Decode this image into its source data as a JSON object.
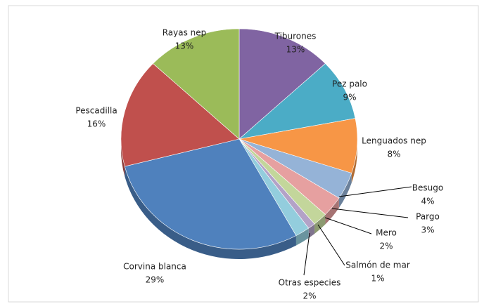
{
  "chart_data": {
    "type": "pie",
    "categories": [
      "Tiburones",
      "Pez palo",
      "Lenguados nep",
      "Besugo",
      "Pargo",
      "Mero",
      "Salmón de mar",
      "Otras especies",
      "Corvina blanca",
      "Pescadilla",
      "Rayas nep"
    ],
    "values": [
      13,
      9,
      8,
      4,
      3,
      2,
      1,
      2,
      29,
      16,
      13
    ],
    "value_labels": [
      "13%",
      "9%",
      "8%",
      "4%",
      "3%",
      "2%",
      "1%",
      "2%",
      "29%",
      "16%",
      "13%"
    ],
    "colors": [
      "#8064a2",
      "#4bacc6",
      "#f79646",
      "#95b3d7",
      "#e6a0a0",
      "#c3d69b",
      "#b3a2c7",
      "#93cddd",
      "#4f81bd",
      "#c0504d",
      "#9bbb59"
    ]
  }
}
